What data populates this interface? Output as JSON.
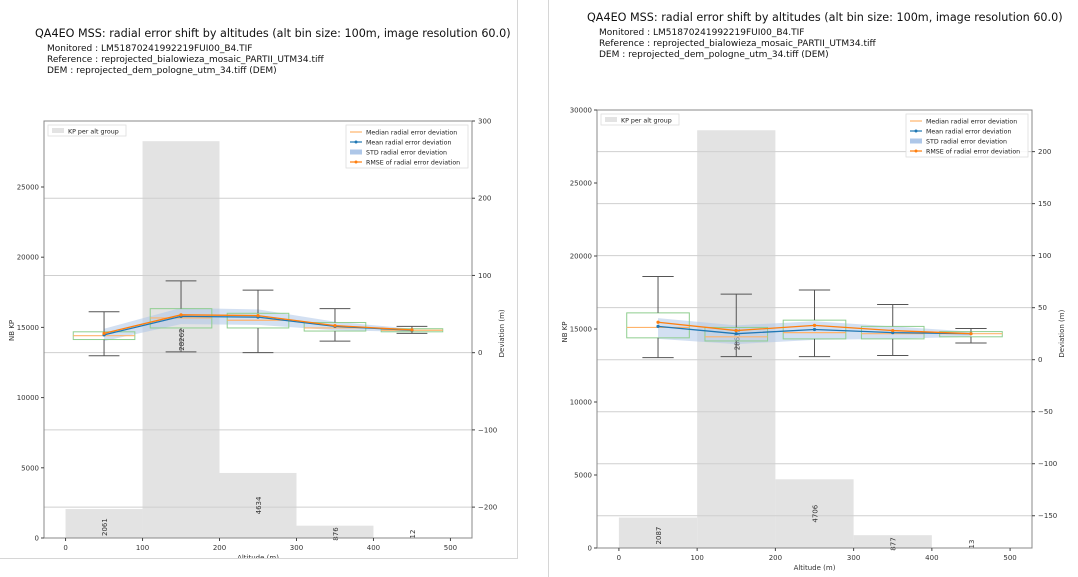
{
  "chart_data": [
    {
      "type": "bar",
      "title": "QA4EO MSS: radial error shift by altitudes (alt bin size: 100m, image resolution 60.0)",
      "meta": [
        "Monitored : LM51870241992219FUI00_B4.TIF",
        "Reference : reprojected_bialowieza_mosaic_PARTII_UTM34.tiff",
        "DEM : reprojected_dem_pologne_utm_34.tiff (DEM)"
      ],
      "xlabel": "Altitude (m)",
      "ylabel": "NB KP",
      "y2label": "Deviation (m)",
      "xlim": [
        -28,
        528
      ],
      "ylim": [
        0,
        29700
      ],
      "y2lim": [
        -240,
        300
      ],
      "xticks": [
        0,
        100,
        200,
        300,
        400,
        500
      ],
      "yticks": [
        0,
        5000,
        10000,
        15000,
        20000,
        25000
      ],
      "y2ticks": [
        -200,
        -100,
        0,
        100,
        200,
        300
      ],
      "grid": true,
      "bar_legend": "KP per alt group",
      "bar_legend_position": "top-left",
      "series_legend_position": "top-right",
      "legend": [
        "Median radial error deviation",
        "Mean radial error deviation",
        "STD radial error deviation",
        "RMSE of radial error deviation"
      ],
      "colors": {
        "bar": "#e3e3e3",
        "median": "#ffb36b",
        "mean": "#1f77b4",
        "std": "#aec7e8",
        "rmse": "#ff7f0e",
        "box": "#8fce8f",
        "whisker": "#555555"
      },
      "bins": [
        {
          "x": 50,
          "count": 2061,
          "median": 22,
          "mean": 23,
          "rmse": 25,
          "std_low": 15,
          "std_high": 31,
          "box_low": 17,
          "box_high": 27,
          "whisker_low": -4,
          "whisker_high": 53
        },
        {
          "x": 150,
          "count": 28262,
          "median": 45,
          "mean": 47,
          "rmse": 49,
          "std_low": 37,
          "std_high": 58,
          "box_low": 32,
          "box_high": 57,
          "whisker_low": 1,
          "whisker_high": 93
        },
        {
          "x": 250,
          "count": 4634,
          "median": 42,
          "mean": 46,
          "rmse": 48,
          "std_low": 36,
          "std_high": 56,
          "box_low": 32,
          "box_high": 51,
          "whisker_low": 0,
          "whisker_high": 81
        },
        {
          "x": 350,
          "count": 876,
          "median": 32,
          "mean": 34,
          "rmse": 35,
          "std_low": 29,
          "std_high": 40,
          "box_low": 28,
          "box_high": 39,
          "whisker_low": 15,
          "whisker_high": 57
        },
        {
          "x": 450,
          "count": 12,
          "median": 29,
          "mean": 29,
          "rmse": 29.5,
          "std_low": 27,
          "std_high": 31,
          "box_low": 27,
          "box_high": 31,
          "whisker_low": 25,
          "whisker_high": 34
        }
      ]
    },
    {
      "type": "bar",
      "title": "QA4EO MSS: radial error shift by altitudes (alt bin size: 100m, image resolution 60.0)",
      "meta": [
        "Monitored : LM51870241992219FUI00_B4.TIF",
        "Reference : reprojected_bialowieza_mosaic_PARTII_UTM34.tiff",
        "DEM : reprojected_dem_pologne_utm_34.tiff (DEM)"
      ],
      "xlabel": "Altitude (m)",
      "ylabel": "NB KP",
      "y2label": "Deviation (m)",
      "xlim": [
        -28,
        528
      ],
      "ylim": [
        0,
        30000
      ],
      "y2lim": [
        -181,
        240
      ],
      "xticks": [
        0,
        100,
        200,
        300,
        400,
        500
      ],
      "yticks": [
        0,
        5000,
        10000,
        15000,
        20000,
        25000,
        30000
      ],
      "y2ticks": [
        -150,
        -100,
        -50,
        0,
        50,
        100,
        150,
        200
      ],
      "grid": true,
      "bar_legend": "KP per alt group",
      "bar_legend_position": "top-left",
      "series_legend_position": "top-right",
      "legend": [
        "Median radial error deviation",
        "Mean radial error deviation",
        "STD radial error deviation",
        "RMSE of radial error deviation"
      ],
      "colors": {
        "bar": "#e3e3e3",
        "median": "#ffb36b",
        "mean": "#1f77b4",
        "std": "#aec7e8",
        "rmse": "#ff7f0e",
        "box": "#8fce8f",
        "whisker": "#555555"
      },
      "bins": [
        {
          "x": 50,
          "count": 2087,
          "median": 31,
          "mean": 32,
          "rmse": 36,
          "std_low": 20,
          "std_high": 40,
          "box_low": 21,
          "box_high": 45,
          "whisker_low": 2,
          "whisker_high": 80
        },
        {
          "x": 150,
          "count": 28612,
          "median": 22,
          "mean": 25,
          "rmse": 28,
          "std_low": 15,
          "std_high": 33,
          "box_low": 18,
          "box_high": 31,
          "whisker_low": 3,
          "whisker_high": 63
        },
        {
          "x": 250,
          "count": 4706,
          "median": 26,
          "mean": 29,
          "rmse": 33,
          "std_low": 19,
          "std_high": 37,
          "box_low": 20,
          "box_high": 38,
          "whisker_low": 3,
          "whisker_high": 67
        },
        {
          "x": 350,
          "count": 877,
          "median": 25,
          "mean": 26,
          "rmse": 28,
          "std_low": 20,
          "std_high": 32,
          "box_low": 20,
          "box_high": 32,
          "whisker_low": 4,
          "whisker_high": 53
        },
        {
          "x": 450,
          "count": 13,
          "median": 25,
          "mean": 25,
          "rmse": 25,
          "std_low": 22,
          "std_high": 27,
          "box_low": 22,
          "box_high": 27,
          "whisker_low": 16,
          "whisker_high": 30
        }
      ]
    }
  ]
}
